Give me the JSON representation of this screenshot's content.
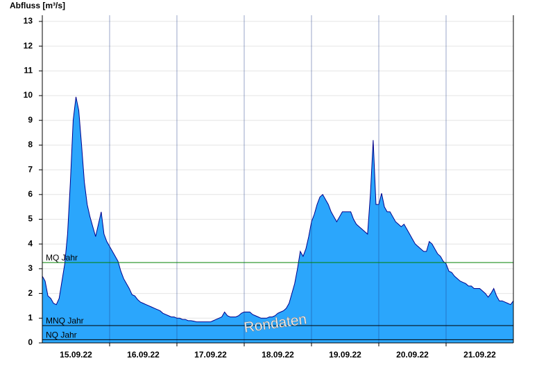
{
  "chart_data": {
    "type": "area",
    "y_label": "Abfluss [m³/s]",
    "watermark": "Rondaten",
    "x": [
      0,
      1,
      2,
      3,
      4,
      5,
      6,
      7,
      8,
      9,
      10,
      11,
      12,
      13,
      14,
      15,
      16,
      17,
      18,
      19,
      20,
      21,
      22,
      23,
      24,
      25,
      26,
      27,
      28,
      29,
      30,
      31,
      32,
      33,
      34,
      35,
      36,
      37,
      38,
      39,
      40,
      41,
      42,
      43,
      44,
      45,
      46,
      47,
      48,
      49,
      50,
      51,
      52,
      53,
      54,
      55,
      56,
      57,
      58,
      59,
      60,
      61,
      62,
      63,
      64,
      65,
      66,
      67,
      68,
      69,
      70,
      71,
      72,
      73,
      74,
      75,
      76,
      77,
      78,
      79,
      80,
      81,
      82,
      83,
      84,
      85,
      86,
      87,
      88,
      89,
      90,
      91,
      92,
      93,
      94,
      95,
      96,
      97,
      98,
      99,
      100,
      101,
      102,
      103,
      104,
      105,
      106,
      107,
      108,
      109,
      110,
      111,
      112,
      113,
      114,
      115,
      116,
      117,
      118,
      119,
      120,
      121,
      122,
      123,
      124,
      125,
      126,
      127,
      128,
      129,
      130,
      131,
      132,
      133,
      134,
      135,
      136,
      137,
      138,
      139,
      140,
      141,
      142,
      143,
      144,
      145,
      146,
      147,
      148,
      149,
      150,
      151,
      152,
      153,
      154,
      155,
      156,
      157,
      158,
      159,
      160,
      161,
      162,
      163,
      164,
      165,
      166,
      167,
      168
    ],
    "series": [
      {
        "color": "#2ba6fc",
        "line_color": "#00008b",
        "values": [
          2.7,
          2.5,
          1.9,
          1.8,
          1.6,
          1.55,
          1.8,
          2.5,
          3.2,
          4.4,
          6.5,
          9.0,
          9.95,
          9.4,
          8.0,
          6.5,
          5.6,
          5.1,
          4.7,
          4.3,
          4.8,
          5.3,
          4.4,
          4.1,
          3.9,
          3.7,
          3.5,
          3.3,
          2.9,
          2.6,
          2.4,
          2.2,
          1.95,
          1.9,
          1.75,
          1.65,
          1.6,
          1.55,
          1.5,
          1.45,
          1.4,
          1.35,
          1.3,
          1.2,
          1.15,
          1.1,
          1.05,
          1.05,
          1.0,
          1.0,
          0.95,
          0.95,
          0.9,
          0.9,
          0.88,
          0.85,
          0.85,
          0.85,
          0.85,
          0.85,
          0.85,
          0.9,
          0.95,
          1.0,
          1.05,
          1.25,
          1.1,
          1.05,
          1.05,
          1.05,
          1.1,
          1.2,
          1.25,
          1.25,
          1.25,
          1.15,
          1.1,
          1.05,
          1.0,
          1.0,
          1.0,
          1.05,
          1.05,
          1.1,
          1.2,
          1.25,
          1.3,
          1.4,
          1.6,
          2.0,
          2.4,
          3.0,
          3.7,
          3.5,
          3.8,
          4.3,
          4.9,
          5.2,
          5.6,
          5.9,
          6.0,
          5.8,
          5.6,
          5.3,
          5.1,
          4.9,
          5.1,
          5.3,
          5.3,
          5.3,
          5.3,
          5.0,
          4.8,
          4.7,
          4.6,
          4.5,
          4.4,
          6.0,
          8.2,
          5.6,
          5.6,
          6.05,
          5.5,
          5.3,
          5.3,
          5.1,
          4.9,
          4.8,
          4.7,
          4.8,
          4.6,
          4.4,
          4.2,
          4.0,
          3.9,
          3.8,
          3.7,
          3.7,
          4.1,
          4.0,
          3.8,
          3.6,
          3.5,
          3.3,
          3.2,
          2.9,
          2.85,
          2.7,
          2.6,
          2.5,
          2.45,
          2.4,
          2.3,
          2.3,
          2.2,
          2.2,
          2.2,
          2.1,
          2.0,
          1.85,
          2.0,
          2.2,
          1.9,
          1.7,
          1.7,
          1.65,
          1.6,
          1.55,
          1.7
        ]
      }
    ],
    "xlim": [
      0,
      168
    ],
    "xticks": [
      {
        "value": 12,
        "label": "15.09.22"
      },
      {
        "value": 36,
        "label": "16.09.22"
      },
      {
        "value": 60,
        "label": "17.09.22"
      },
      {
        "value": 84,
        "label": "18.09.22"
      },
      {
        "value": 108,
        "label": "19.09.22"
      },
      {
        "value": 132,
        "label": "20.09.22"
      },
      {
        "value": 156,
        "label": "21.09.22"
      }
    ],
    "day_lines": [
      24,
      48,
      72,
      96,
      120,
      144
    ],
    "ylim": [
      0,
      13.25
    ],
    "yticks": [
      0,
      1,
      2,
      3,
      4,
      5,
      6,
      7,
      8,
      9,
      10,
      11,
      12,
      13
    ],
    "grid": true,
    "reference_lines": [
      {
        "label": "MQ Jahr",
        "value": 3.25,
        "color": "#008000"
      },
      {
        "label": "MNQ Jahr",
        "value": 0.7,
        "color": "#000000"
      },
      {
        "label": "NQ Jahr",
        "value": 0.13,
        "color": "#000000"
      }
    ]
  }
}
